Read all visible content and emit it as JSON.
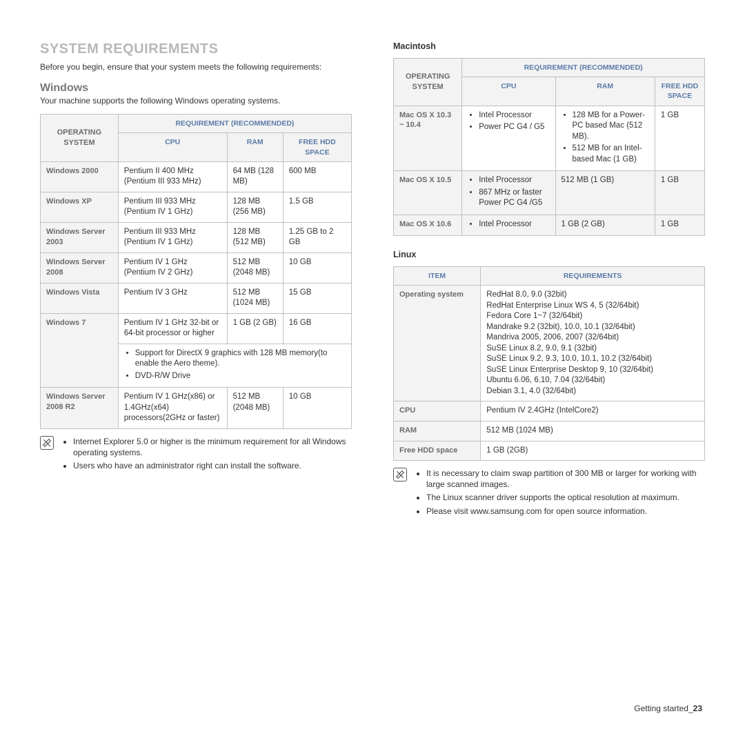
{
  "title": "SYSTEM REQUIREMENTS",
  "intro": "Before you begin, ensure that your system meets the following requirements:",
  "windows": {
    "heading": "Windows",
    "sub": "Your machine supports the following Windows operating systems.",
    "headers": {
      "os": "OPERATING SYSTEM",
      "req": "REQUIREMENT (RECOMMENDED)",
      "cpu": "CPU",
      "ram": "RAM",
      "hdd": "FREE HDD SPACE"
    },
    "rows": [
      {
        "os": "Windows 2000",
        "cpu": "Pentium II 400 MHz (Pentium III 933 MHz)",
        "ram": "64 MB (128 MB)",
        "hdd": "600 MB"
      },
      {
        "os": "Windows XP",
        "cpu": "Pentium III 933 MHz (Pentium IV 1 GHz)",
        "ram": "128 MB (256 MB)",
        "hdd": "1.5 GB"
      },
      {
        "os": "Windows Server 2003",
        "cpu": "Pentium III 933 MHz (Pentium IV 1 GHz)",
        "ram": "128 MB (512 MB)",
        "hdd": "1.25 GB to 2 GB"
      },
      {
        "os": "Windows Server 2008",
        "cpu": "Pentium IV 1 GHz (Pentium IV 2 GHz)",
        "ram": "512 MB (2048 MB)",
        "hdd": "10 GB"
      },
      {
        "os": "Windows Vista",
        "cpu": "Pentium IV 3 GHz",
        "ram": "512 MB (1024 MB)",
        "hdd": "15 GB"
      },
      {
        "os": "Windows 7",
        "cpu": "Pentium IV 1 GHz 32-bit or 64-bit processor or higher",
        "ram": "1 GB (2 GB)",
        "hdd": "16 GB"
      }
    ],
    "win7_extra": [
      "Support for DirectX 9 graphics with 128 MB memory(to enable the Aero theme).",
      "DVD-R/W Drive"
    ],
    "server2008r2": {
      "os": "Windows Server 2008 R2",
      "cpu": "Pentium IV 1 GHz(x86) or 1.4GHz(x64) processors(2GHz or faster)",
      "ram": "512 MB (2048 MB)",
      "hdd": "10 GB"
    },
    "notes": [
      "Internet Explorer 5.0 or higher is the minimum requirement for all Windows operating systems.",
      "Users who have an administrator right can install the software."
    ]
  },
  "mac": {
    "heading": "Macintosh",
    "headers": {
      "os": "OPERATING SYSTEM",
      "req": "REQUIREMENT (RECOMMENDED)",
      "cpu": "CPU",
      "ram": "RAM",
      "hdd": "FREE HDD SPACE"
    },
    "rows": [
      {
        "os": "Mac OS X 10.3 ~ 10.4",
        "cpu": [
          "Intel Processor",
          "Power PC G4 / G5"
        ],
        "ram": [
          "128 MB for a Power-PC based Mac (512 MB).",
          "512 MB for an Intel-based Mac (1 GB)"
        ],
        "hdd": "1 GB"
      },
      {
        "os": "Mac OS X 10.5",
        "cpu": [
          "Intel Processor",
          "867 MHz or faster Power PC G4 /G5"
        ],
        "ram_text": "512 MB (1 GB)",
        "hdd": "1 GB"
      },
      {
        "os": "Mac OS X 10.6",
        "cpu": [
          "Intel Processor"
        ],
        "ram_text": "1 GB (2 GB)",
        "hdd": "1 GB"
      }
    ]
  },
  "linux": {
    "heading": "Linux",
    "headers": {
      "item": "ITEM",
      "req": "REQUIREMENTS"
    },
    "os_label": "Operating system",
    "os_list": [
      "RedHat 8.0, 9.0 (32bit)",
      "RedHat Enterprise Linux WS 4, 5 (32/64bit)",
      "Fedora Core 1~7 (32/64bit)",
      "Mandrake 9.2 (32bit), 10.0, 10.1 (32/64bit)",
      "Mandriva 2005, 2006, 2007 (32/64bit)",
      "SuSE Linux 8.2, 9.0, 9.1 (32bit)",
      "SuSE Linux 9.2, 9.3, 10.0, 10.1, 10.2 (32/64bit)",
      "SuSE Linux Enterprise Desktop 9, 10 (32/64bit)",
      "Ubuntu 6.06, 6.10, 7.04 (32/64bit)",
      "Debian 3.1, 4.0 (32/64bit)"
    ],
    "cpu_label": "CPU",
    "cpu": "Pentium IV 2.4GHz (IntelCore2)",
    "ram_label": "RAM",
    "ram": "512 MB (1024 MB)",
    "hdd_label": "Free HDD space",
    "hdd": "1 GB (2GB)",
    "notes": [
      "It is necessary to claim swap partition of 300 MB or larger for working with large scanned images.",
      "The Linux scanner driver supports the optical resolution at maximum.",
      "Please visit www.samsung.com for open source information."
    ]
  },
  "footer_prefix": "Getting started_",
  "footer_page": "23"
}
